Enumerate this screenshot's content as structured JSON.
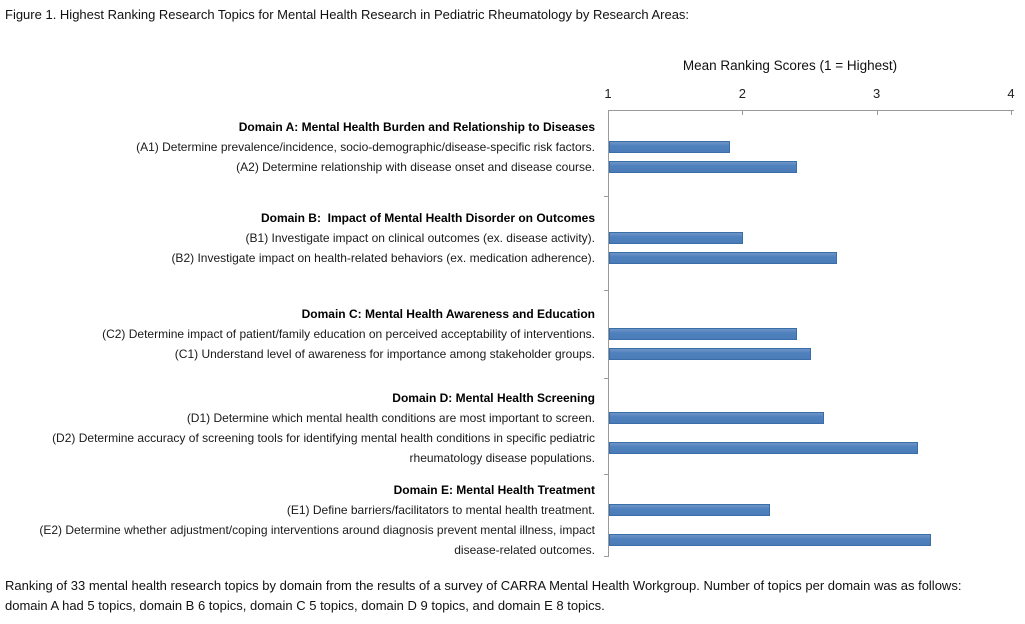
{
  "figure": {
    "title": "Figure 1. Highest Ranking Research Topics for Mental Health Research in Pediatric Rheumatology by Research Areas:",
    "footnote": "Ranking of 33 mental health research topics by domain from the results of a survey of CARRA Mental Health Workgroup. Number of topics per domain was as follows: domain A had 5 topics, domain B 6 topics, domain C 5 topics, domain D 9 topics, and domain E 8 topics."
  },
  "chart_data": {
    "type": "bar",
    "orientation": "horizontal",
    "axis_title": "Mean Ranking Scores (1 = Highest)",
    "xlim": [
      1,
      4
    ],
    "x_ticks": [
      1,
      2,
      3,
      4
    ],
    "grid": false,
    "legend": "none",
    "bar_color": "#4F81BD",
    "bar_border_color": "#3A6EA8",
    "axis_color": "#9A9A9A",
    "groups": [
      {
        "header": "Domain A: Mental Health Burden and Relationship to Diseases",
        "items": [
          {
            "label": "(A1) Determine prevalence/incidence, socio-demographic/disease-specific risk factors.",
            "value": 1.9
          },
          {
            "label": "(A2) Determine relationship with disease onset and disease course.",
            "value": 2.4
          }
        ]
      },
      {
        "header": "Domain B:  Impact of Mental Health Disorder on Outcomes",
        "items": [
          {
            "label": "(B1) Investigate impact on clinical outcomes (ex. disease activity).",
            "value": 2.0
          },
          {
            "label": "(B2) Investigate impact on health-related behaviors (ex. medication adherence).",
            "value": 2.7
          }
        ]
      },
      {
        "header": "Domain C: Mental Health Awareness and Education",
        "items": [
          {
            "label": "(C2) Determine impact of patient/family education on perceived acceptability of interventions.",
            "value": 2.4
          },
          {
            "label": "(C1) Understand level of awareness for importance among stakeholder groups.",
            "value": 2.5
          }
        ]
      },
      {
        "header": "Domain D: Mental Health Screening",
        "items": [
          {
            "label": "(D1) Determine which mental health conditions are most important to screen.",
            "value": 2.6
          },
          {
            "label": "(D2) Determine accuracy of screening tools for identifying mental health conditions in specific pediatric rheumatology disease populations.",
            "value": 3.3
          }
        ]
      },
      {
        "header": "Domain E: Mental Health Treatment",
        "items": [
          {
            "label": "(E1) Define barriers/facilitators to mental health treatment.",
            "value": 2.2
          },
          {
            "label": "(E2) Determine whether adjustment/coping interventions around diagnosis prevent mental illness, impact disease-related outcomes.",
            "value": 3.4
          }
        ]
      }
    ]
  }
}
